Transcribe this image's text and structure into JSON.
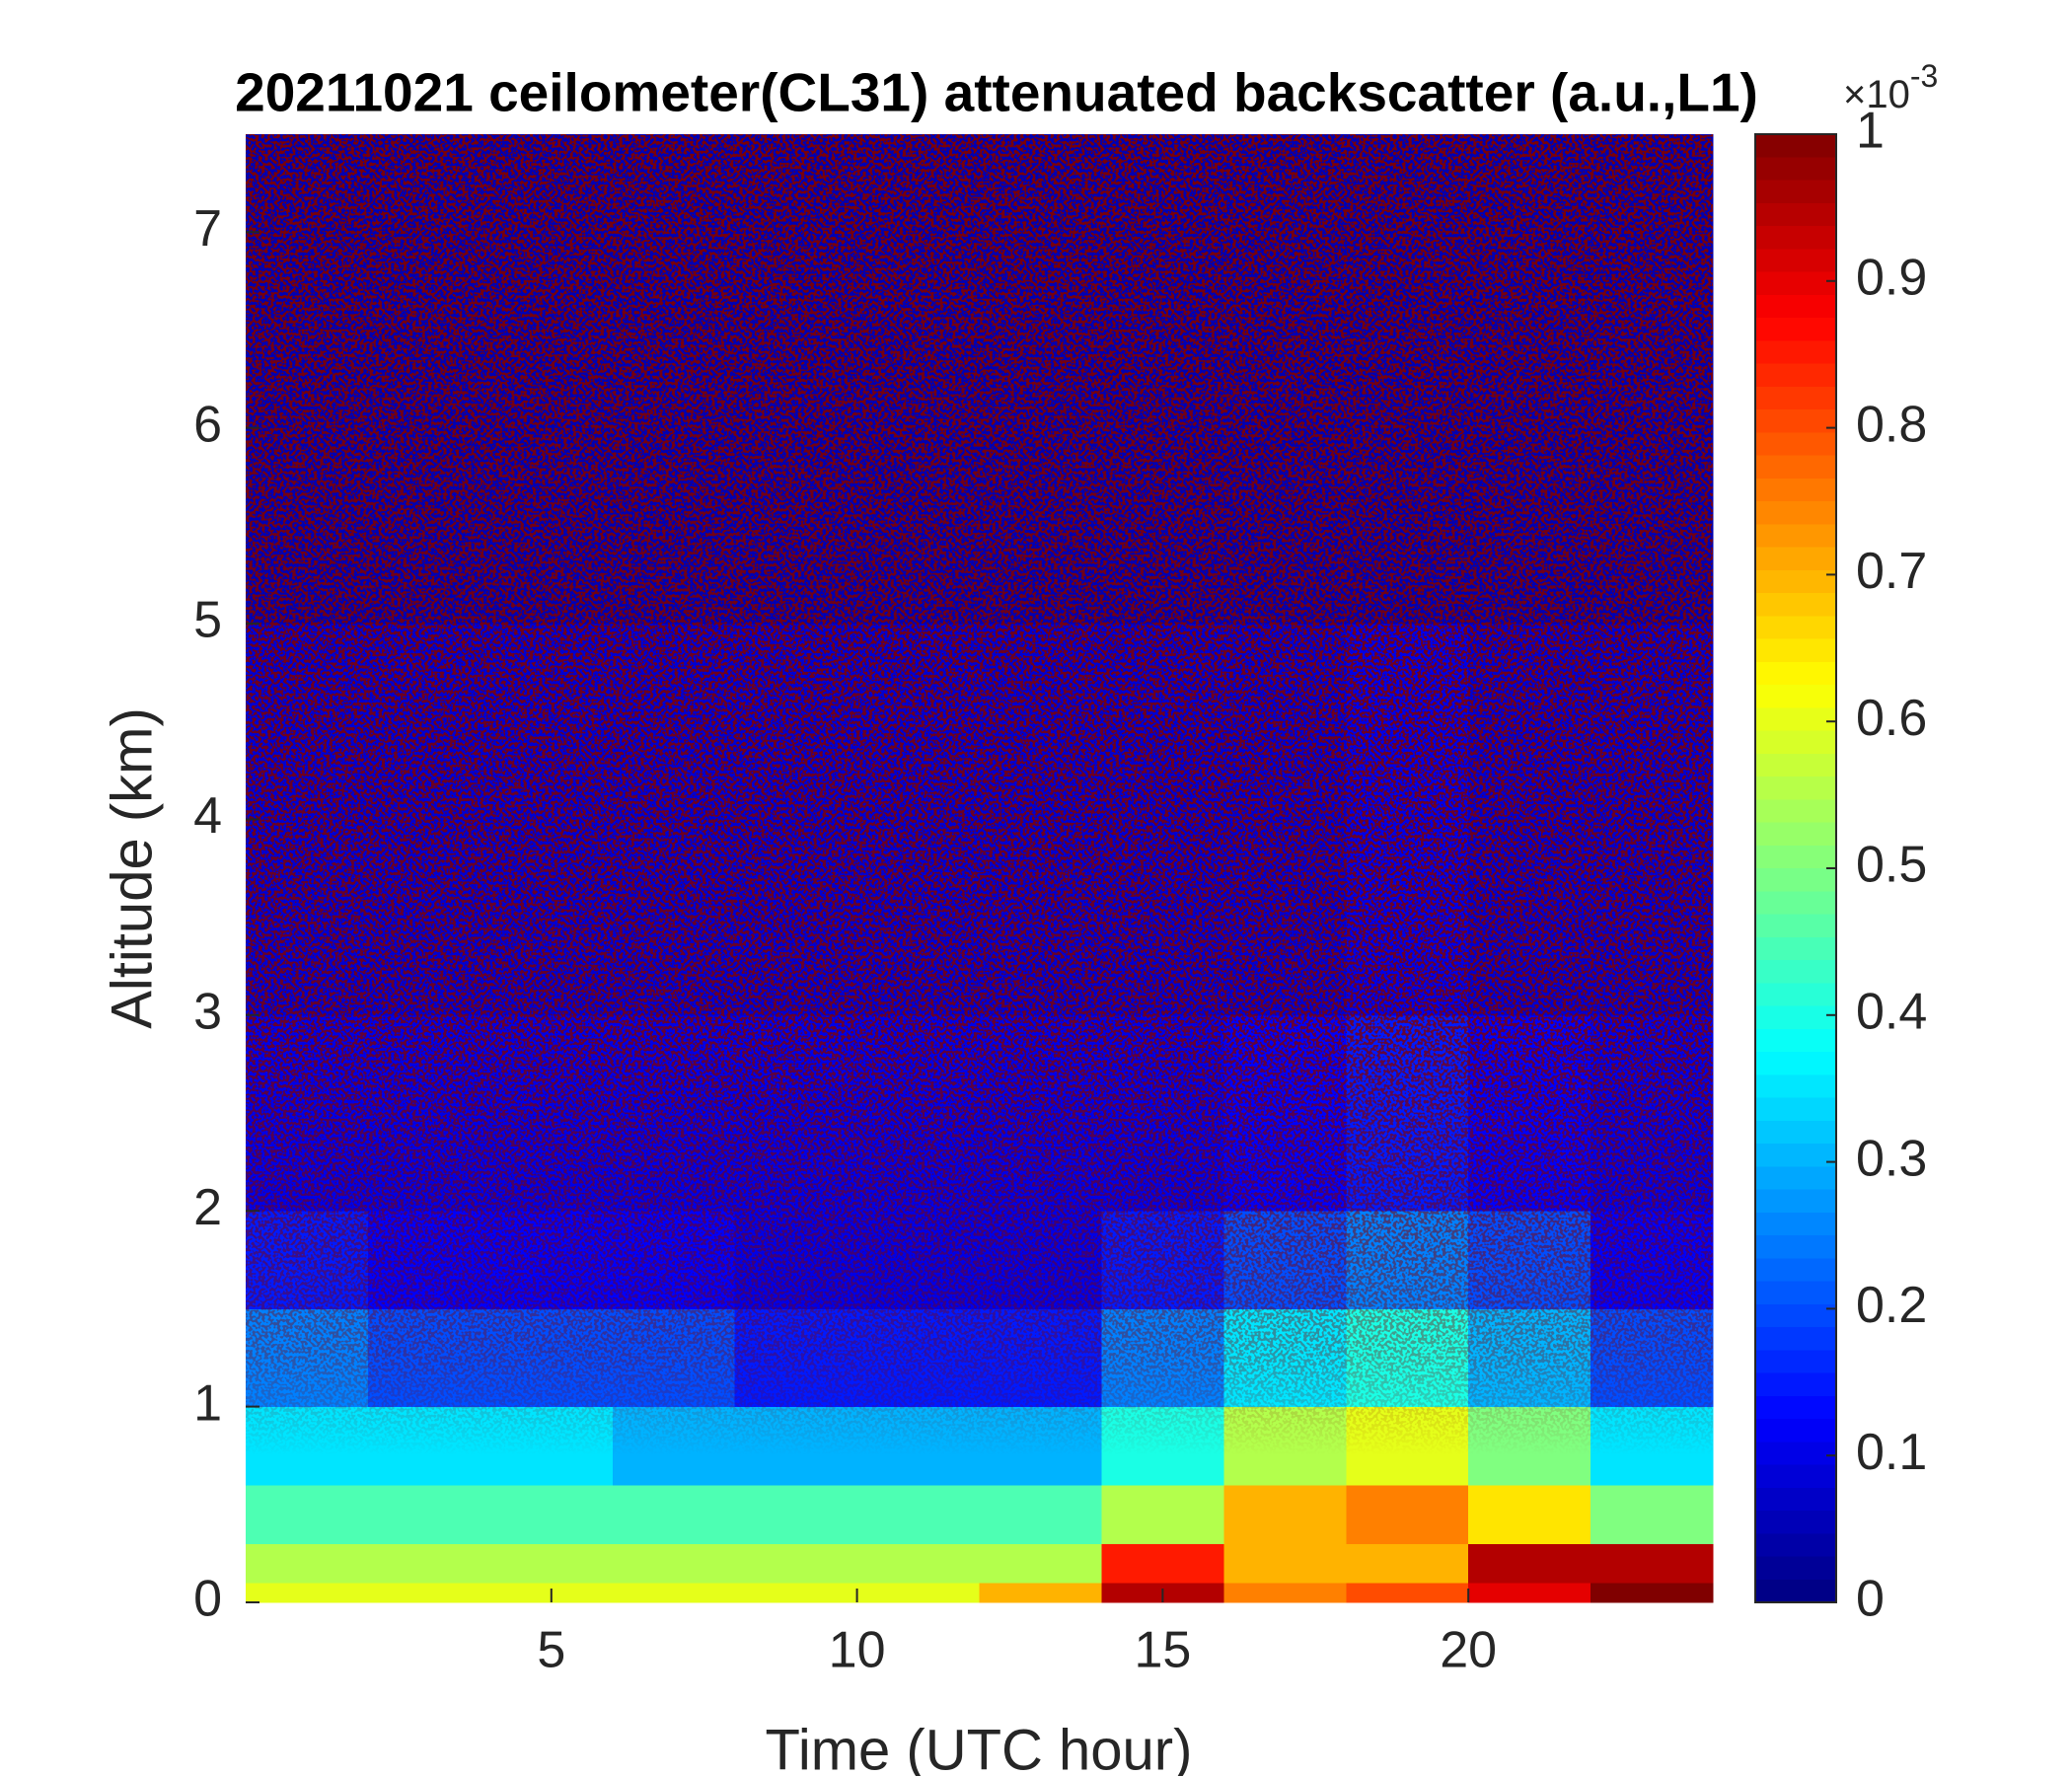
{
  "chart_data": {
    "type": "heatmap",
    "title": "20211021 ceilometer(CL31) attenuated backscatter (a.u.,L1)",
    "x_label": "Time (UTC hour)",
    "y_label": "Altitude (km)",
    "xlim": [
      0,
      24
    ],
    "ylim": [
      0,
      7.5
    ],
    "xticks": [
      5,
      10,
      15,
      20
    ],
    "yticks": [
      0,
      1,
      2,
      3,
      4,
      5,
      6,
      7
    ],
    "colormap": "jet",
    "clim": [
      0,
      1
    ],
    "colorbar_ticks": [
      0,
      0.1,
      0.2,
      0.3,
      0.4,
      0.5,
      0.6,
      0.7,
      0.8,
      0.9,
      1
    ],
    "colorbar_multiplier": {
      "base": "×10",
      "exponent": "-3"
    },
    "x_edges": [
      0,
      2,
      4,
      6,
      8,
      10,
      12,
      14,
      16,
      18,
      20,
      22,
      24
    ],
    "y_edges": [
      0,
      0.1,
      0.3,
      0.6,
      1,
      1.5,
      2,
      3,
      5,
      7.5
    ],
    "z": [
      [
        0.6,
        0.6,
        0.6,
        0.6,
        0.6,
        0.6,
        0.7,
        0.95,
        0.75,
        0.8,
        0.9,
        1
      ],
      [
        0.55,
        0.55,
        0.55,
        0.55,
        0.55,
        0.55,
        0.55,
        0.85,
        0.7,
        0.7,
        0.95,
        0.95
      ],
      [
        0.45,
        0.45,
        0.45,
        0.45,
        0.45,
        0.45,
        0.45,
        0.55,
        0.7,
        0.75,
        0.65,
        0.5
      ],
      [
        0.35,
        0.35,
        0.35,
        0.3,
        0.3,
        0.3,
        0.3,
        0.4,
        0.55,
        0.6,
        0.5,
        0.35
      ],
      [
        0.25,
        0.2,
        0.2,
        0.2,
        0.15,
        0.15,
        0.15,
        0.25,
        0.35,
        0.4,
        0.3,
        0.2
      ],
      [
        0.15,
        0.12,
        0.12,
        0.12,
        0.1,
        0.1,
        0.1,
        0.15,
        0.2,
        0.25,
        0.2,
        0.12
      ],
      [
        0.1,
        0.1,
        0.1,
        0.1,
        0.1,
        0.1,
        0.1,
        0.1,
        0.12,
        0.15,
        0.12,
        0.1
      ],
      [
        0.08,
        0.08,
        0.08,
        0.08,
        0.08,
        0.08,
        0.08,
        0.08,
        0.08,
        0.1,
        0.08,
        0.08
      ],
      [
        0.05,
        0.05,
        0.05,
        0.05,
        0.05,
        0.05,
        0.05,
        0.05,
        0.05,
        0.05,
        0.05,
        0.05
      ]
    ]
  }
}
